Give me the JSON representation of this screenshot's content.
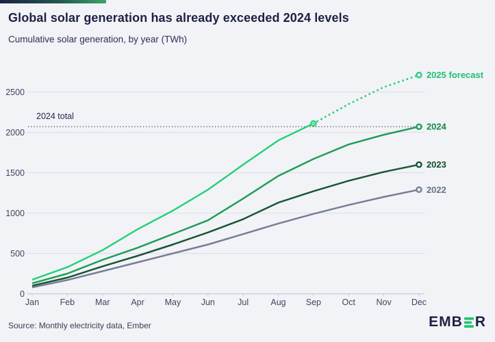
{
  "footer": {
    "source": "Source: Monthly electricity data, Ember",
    "logo_prefix": "EMB",
    "logo_suffix": "R"
  },
  "brand": {
    "navy": "#1d2142",
    "green": "#1fc36b",
    "background": "#f2f3f7"
  },
  "chart_data": {
    "type": "line",
    "title": "Global solar generation has already exceeded 2024 levels",
    "subtitle": "Cumulative solar generation, by year (TWh)",
    "x": [
      "Jan",
      "Feb",
      "Mar",
      "Apr",
      "May",
      "Jun",
      "Jul",
      "Aug",
      "Sep",
      "Oct",
      "Nov",
      "Dec"
    ],
    "y_ticks": [
      0,
      500,
      1000,
      1500,
      2000,
      2500
    ],
    "ylim": [
      0,
      2800
    ],
    "grid": "horizontal",
    "legend_position": "right-of-line-endpoints",
    "reference_line": {
      "label": "2024 total",
      "value": 2070
    },
    "series": [
      {
        "name": "2022",
        "label": "2022",
        "color": "#757e97",
        "label_color": "#687186",
        "style": "solid",
        "start_index": 0,
        "values": [
          80,
          170,
          280,
          390,
          500,
          610,
          740,
          870,
          990,
          1100,
          1200,
          1290
        ]
      },
      {
        "name": "2023",
        "label": "2023",
        "color": "#1a5634",
        "label_color": "#134d2c",
        "style": "solid",
        "start_index": 0,
        "values": [
          100,
          200,
          340,
          470,
          610,
          760,
          925,
          1130,
          1270,
          1400,
          1510,
          1600
        ]
      },
      {
        "name": "2024",
        "label": "2024",
        "color": "#1f9e58",
        "label_color": "#128a49",
        "style": "solid",
        "start_index": 0,
        "values": [
          130,
          250,
          420,
          570,
          740,
          910,
          1180,
          1460,
          1670,
          1850,
          1970,
          2070
        ]
      },
      {
        "name": "2025",
        "label": "",
        "color": "#2bd07c",
        "label_color": "#2bd07c",
        "style": "solid",
        "start_index": 0,
        "values": [
          175,
          330,
          540,
          800,
          1030,
          1290,
          1600,
          1900,
          2110
        ]
      },
      {
        "name": "2025 forecast",
        "label": "2025 forecast",
        "color": "#2bd07c",
        "label_color": "#1ec06e",
        "style": "dotted",
        "start_index": 8,
        "values": [
          2110,
          2350,
          2560,
          2710
        ]
      }
    ]
  }
}
